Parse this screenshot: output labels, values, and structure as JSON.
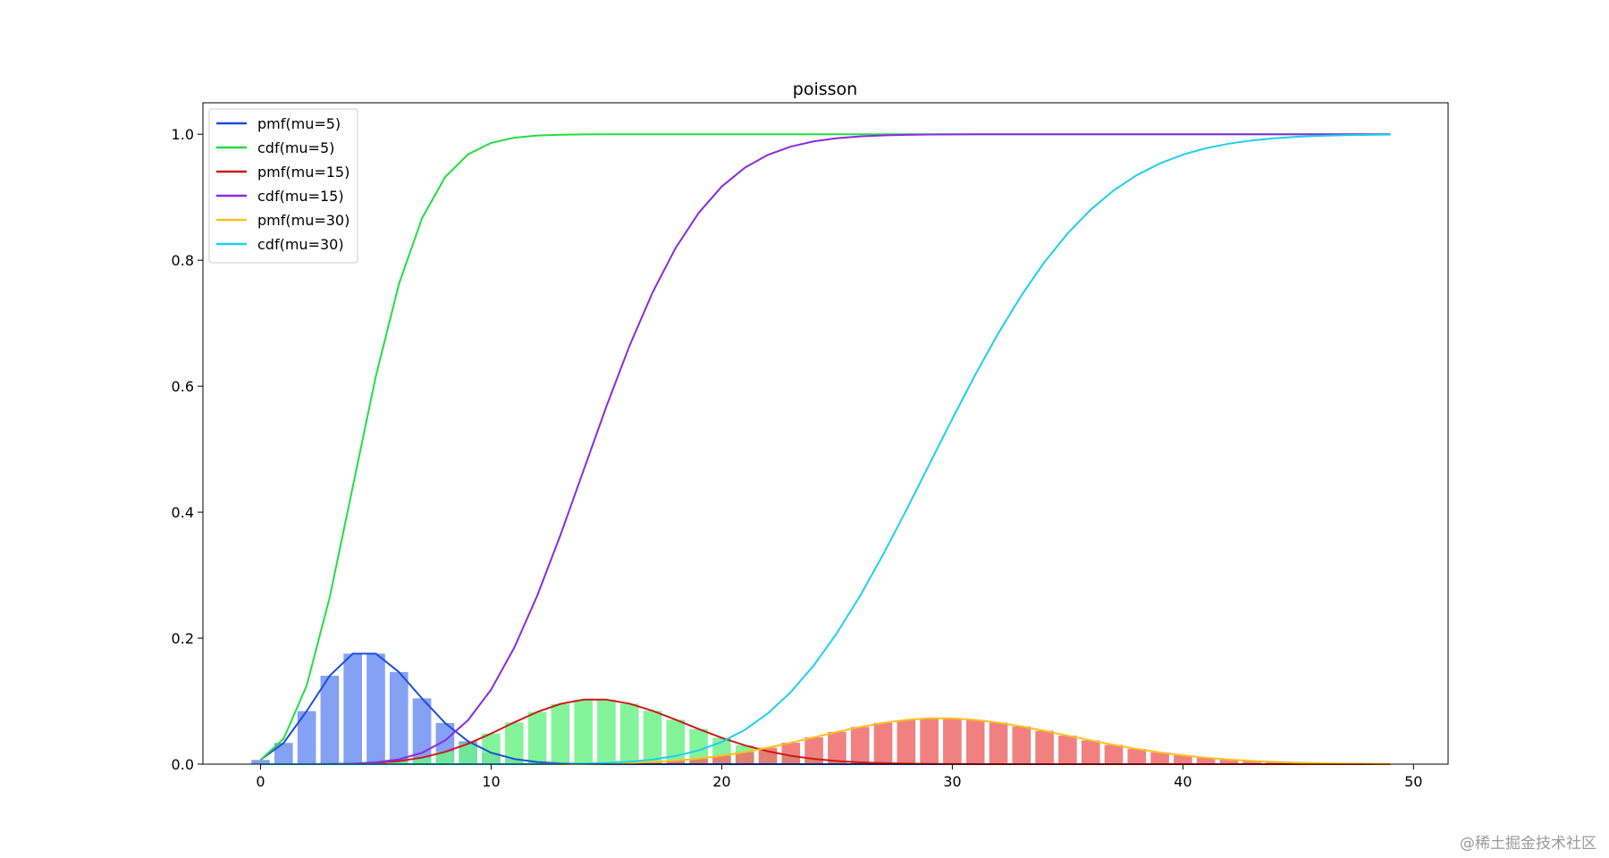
{
  "chart_data": {
    "type": "line",
    "title": "poisson",
    "xlabel": "",
    "ylabel": "",
    "xlim": [
      -2.5,
      51.5
    ],
    "ylim": [
      0,
      1.05
    ],
    "x_ticks": [
      0,
      10,
      20,
      30,
      40,
      50
    ],
    "y_ticks": [
      "0.0",
      "0.2",
      "0.4",
      "0.6",
      "0.8",
      "1.0"
    ],
    "grid": false,
    "legend_position": "top-left",
    "x_range": [
      0,
      49
    ],
    "series": [
      {
        "name": "pmf(mu=5)",
        "kind": "pmf",
        "mu": 5,
        "color": "#1a4fd6",
        "bar_color": "#6f90f2"
      },
      {
        "name": "cdf(mu=5)",
        "kind": "cdf",
        "mu": 5,
        "color": "#22dd44"
      },
      {
        "name": "pmf(mu=15)",
        "kind": "pmf",
        "mu": 15,
        "color": "#d01818",
        "bar_color": "#6ff28a"
      },
      {
        "name": "cdf(mu=15)",
        "kind": "cdf",
        "mu": 15,
        "color": "#8a2be2"
      },
      {
        "name": "pmf(mu=30)",
        "kind": "pmf",
        "mu": 30,
        "color": "#ffbf1f",
        "bar_color": "#ef6b6b"
      },
      {
        "name": "cdf(mu=30)",
        "kind": "cdf",
        "mu": 30,
        "color": "#1ecff0"
      }
    ]
  },
  "watermark": "@稀土掘金技术社区"
}
